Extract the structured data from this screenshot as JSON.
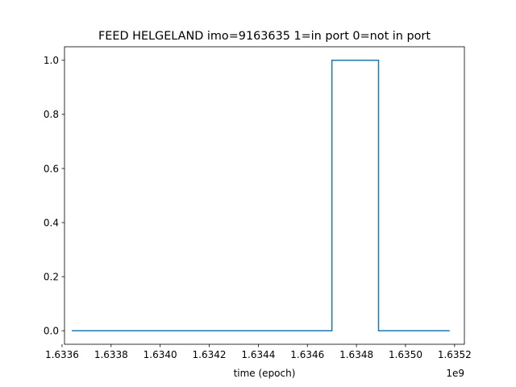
{
  "chart_data": {
    "type": "line",
    "title": "FEED HELGELAND imo=9163635 1=in port 0=not in port",
    "xlabel": "time (epoch)",
    "ylabel": "",
    "x_offset_label": "1e9",
    "xlim": [
      1633610000.0,
      1635240000.0
    ],
    "ylim": [
      -0.05,
      1.05
    ],
    "xticks": [
      1633600000.0,
      1633800000.0,
      1634000000.0,
      1634200000.0,
      1634400000.0,
      1634600000.0,
      1634800000.0,
      1635000000.0,
      1635200000.0
    ],
    "xtick_labels": [
      "1.6336",
      "1.6338",
      "1.6340",
      "1.6342",
      "1.6344",
      "1.6346",
      "1.6348",
      "1.6350",
      "1.6352"
    ],
    "yticks": [
      0.0,
      0.2,
      0.4,
      0.6,
      0.8,
      1.0
    ],
    "ytick_labels": [
      "0.0",
      "0.2",
      "0.4",
      "0.6",
      "0.8",
      "1.0"
    ],
    "grid": false,
    "series": [
      {
        "color": "#1f77b4",
        "x": [
          1633640000.0,
          1634700000.0,
          1634700000.0,
          1634890000.0,
          1634890000.0,
          1635180000.0
        ],
        "y": [
          0,
          0,
          1,
          1,
          0,
          0
        ]
      }
    ]
  }
}
